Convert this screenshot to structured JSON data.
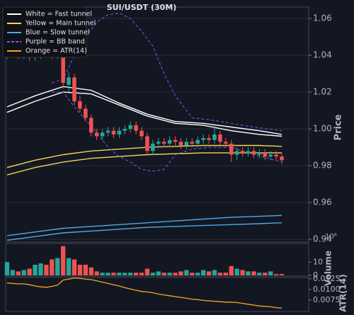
{
  "chart_data": {
    "type": "candlestick",
    "title": "SUI/USDT (30M)",
    "y_label": "Price",
    "ylim": [
      0.9385,
      1.0662
    ],
    "yticks": [
      0.94,
      0.96,
      0.98,
      {
        "value": 1.0,
        "label": "1.00"
      },
      1.02,
      1.04,
      1.06
    ],
    "grid": true,
    "legend": "upper left",
    "up_color": "#26a69a",
    "down_color": "#ef5350",
    "candles": {
      "open": [
        1.04,
        1.041,
        1.042,
        1.04,
        1.041,
        1.039,
        1.04,
        1.042,
        1.041,
        1.04,
        1.041,
        1.024,
        1.028,
        1.015,
        1.011,
        1.006,
        0.998,
        0.996,
        0.998,
        0.999,
        0.997,
        0.999,
        1.0,
        1.002,
        0.999,
        0.996,
        0.988,
        0.992,
        0.993,
        0.992,
        0.994,
        0.993,
        0.991,
        0.993,
        0.992,
        0.994,
        0.995,
        0.994,
        0.997,
        0.993,
        0.992,
        0.986,
        0.988,
        0.987,
        0.988,
        0.986,
        0.987,
        0.985,
        0.986,
        0.985
      ],
      "high": [
        1.043,
        1.044,
        1.044,
        1.043,
        1.043,
        1.042,
        1.044,
        1.044,
        1.043,
        1.047,
        1.043,
        1.031,
        1.03,
        1.018,
        1.013,
        1.008,
        1.0,
        1.0,
        1.001,
        1.001,
        1.001,
        1.002,
        1.004,
        1.004,
        1.001,
        0.998,
        0.994,
        0.995,
        0.995,
        0.996,
        0.996,
        0.995,
        0.995,
        0.995,
        0.996,
        0.997,
        0.997,
        1.002,
        0.999,
        0.995,
        0.994,
        0.99,
        0.99,
        0.99,
        0.99,
        0.989,
        0.989,
        0.988,
        0.988,
        0.987
      ],
      "low": [
        1.038,
        1.039,
        1.038,
        1.038,
        1.037,
        1.037,
        1.038,
        1.039,
        1.038,
        1.038,
        1.022,
        1.02,
        1.013,
        1.009,
        1.004,
        0.996,
        0.994,
        0.994,
        0.996,
        0.995,
        0.995,
        0.997,
        0.998,
        0.997,
        0.994,
        0.986,
        0.986,
        0.99,
        0.99,
        0.99,
        0.991,
        0.989,
        0.989,
        0.99,
        0.99,
        0.992,
        0.992,
        0.992,
        0.991,
        0.99,
        0.982,
        0.983,
        0.985,
        0.985,
        0.984,
        0.984,
        0.983,
        0.983,
        0.983,
        0.981
      ],
      "close": [
        1.041,
        1.042,
        1.04,
        1.041,
        1.039,
        1.04,
        1.042,
        1.041,
        1.04,
        1.041,
        1.025,
        1.028,
        1.015,
        1.011,
        1.006,
        0.998,
        0.996,
        0.998,
        0.999,
        0.997,
        0.999,
        1.0,
        1.002,
        0.999,
        0.996,
        0.988,
        0.992,
        0.993,
        0.992,
        0.994,
        0.993,
        0.991,
        0.993,
        0.992,
        0.994,
        0.995,
        0.994,
        0.997,
        0.993,
        0.992,
        0.986,
        0.988,
        0.987,
        0.988,
        0.986,
        0.987,
        0.985,
        0.986,
        0.985,
        0.983
      ]
    },
    "overlays": [
      {
        "name": "White = Fast tunnel",
        "color": "#ffffff",
        "dashed": false,
        "x": [
          0,
          5,
          10,
          15,
          20,
          25,
          30,
          35,
          40,
          45,
          49
        ],
        "upper": [
          1.012,
          1.018,
          1.023,
          1.021,
          1.014,
          1.008,
          1.004,
          1.003,
          1.001,
          0.999,
          0.997
        ],
        "lower": [
          1.009,
          1.015,
          1.02,
          1.019,
          1.013,
          1.007,
          1.003,
          1.002,
          0.999,
          0.997,
          0.996
        ]
      },
      {
        "name": "Yellow = Main tunnel",
        "color": "#f5d25a",
        "dashed": false,
        "x": [
          0,
          5,
          10,
          15,
          20,
          25,
          30,
          35,
          40,
          45,
          49
        ],
        "upper": [
          0.979,
          0.983,
          0.986,
          0.988,
          0.989,
          0.99,
          0.9905,
          0.991,
          0.991,
          0.991,
          0.9905
        ],
        "lower": [
          0.975,
          0.979,
          0.982,
          0.984,
          0.985,
          0.986,
          0.9865,
          0.987,
          0.987,
          0.987,
          0.987
        ]
      },
      {
        "name": "Blue = Slow tunnel",
        "color": "#4ea8e8",
        "dashed": false,
        "x": [
          0,
          5,
          10,
          15,
          20,
          25,
          30,
          35,
          40,
          45,
          49
        ],
        "upper": [
          0.942,
          0.944,
          0.946,
          0.947,
          0.948,
          0.949,
          0.95,
          0.951,
          0.952,
          0.9525,
          0.953
        ],
        "lower": [
          0.9395,
          0.9415,
          0.9435,
          0.9445,
          0.9455,
          0.9465,
          0.947,
          0.9475,
          0.948,
          0.9485,
          0.949
        ]
      },
      {
        "name": "Purple = BB band",
        "color": "#7b5cf0",
        "dashed": true,
        "x": [
          8,
          10,
          12,
          14,
          16,
          18,
          20,
          22,
          24,
          26,
          28,
          30,
          33,
          36,
          40,
          44,
          49
        ],
        "upper": [
          1.025,
          1.027,
          1.04,
          1.05,
          1.058,
          1.062,
          1.063,
          1.06,
          1.053,
          1.045,
          1.03,
          1.018,
          1.006,
          1.005,
          1.003,
          1.001,
          0.999
        ],
        "lower": [
          1.02,
          1.02,
          1.012,
          1.005,
          0.998,
          0.99,
          0.985,
          0.982,
          0.978,
          0.977,
          0.978,
          0.986,
          0.989,
          0.99,
          0.99,
          0.986,
          0.982
        ]
      }
    ],
    "volume": {
      "label": "Volume",
      "offset": "10⁶",
      "ylim": [
        0,
        24
      ],
      "yticks": [
        0,
        10
      ],
      "values": [
        10,
        4,
        3,
        4,
        5,
        8,
        9,
        8,
        12,
        13,
        22,
        13,
        12,
        8,
        8,
        6,
        3,
        2,
        2,
        2,
        2,
        2,
        2,
        2,
        2,
        5,
        2,
        3,
        2,
        2,
        2,
        3,
        4,
        2,
        2,
        4,
        3,
        4,
        2,
        2,
        7,
        5,
        4,
        3,
        3,
        2,
        2,
        3,
        1,
        1
      ]
    },
    "atr": {
      "name": "Orange = ATR(14)",
      "label": "ATR(14)",
      "color": "#f5a623",
      "ylim": [
        0.0048,
        0.0128
      ],
      "yticks": [
        0.0075,
        {
          "value": 0.01,
          "label": "0.0100"
        },
        0.0125
      ],
      "values": [
        0.0115,
        0.0114,
        0.0113,
        0.0113,
        0.0111,
        0.0108,
        0.0106,
        0.0105,
        0.0107,
        0.011,
        0.0122,
        0.0124,
        0.0127,
        0.0126,
        0.0124,
        0.0123,
        0.012,
        0.0117,
        0.0114,
        0.0111,
        0.0108,
        0.0104,
        0.0101,
        0.0098,
        0.0095,
        0.0094,
        0.0092,
        0.0089,
        0.0087,
        0.0085,
        0.0083,
        0.0081,
        0.0079,
        0.0077,
        0.0076,
        0.0074,
        0.0073,
        0.0072,
        0.0071,
        0.007,
        0.007,
        0.0069,
        0.0067,
        0.0065,
        0.0063,
        0.0061,
        0.006,
        0.0059,
        0.0057,
        0.0056
      ]
    }
  }
}
